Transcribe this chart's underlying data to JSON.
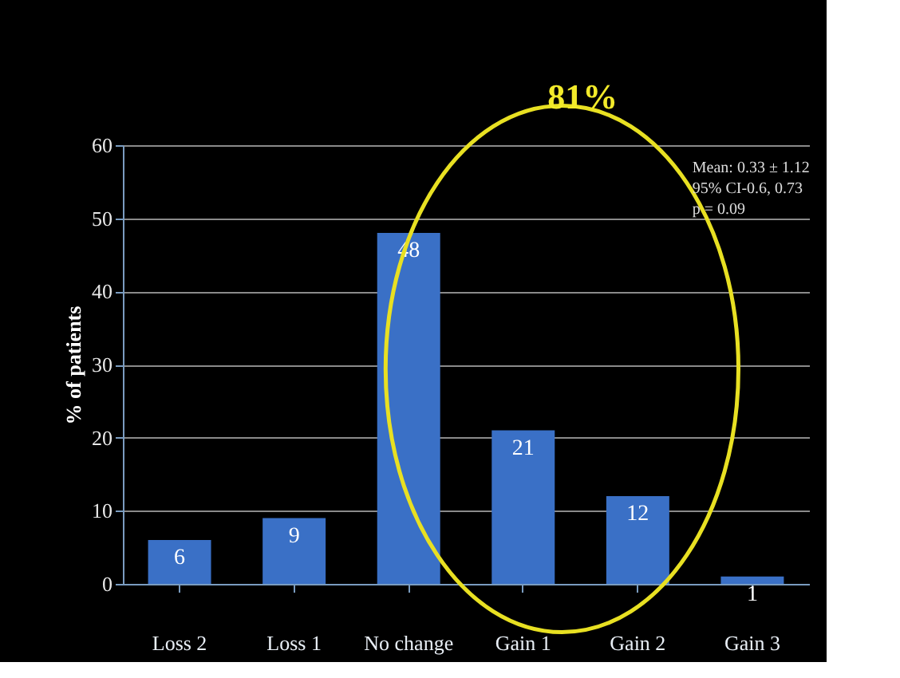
{
  "chart_data": {
    "type": "bar",
    "ylabel": "% of patients",
    "categories": [
      "Loss 2",
      "Loss 1",
      "No change",
      "Gain 1",
      "Gain 2",
      "Gain 3"
    ],
    "values": [
      6,
      9,
      48,
      21,
      12,
      1
    ],
    "color": "#3a70c6",
    "ylim": [
      0,
      60
    ],
    "yticks": [
      0,
      10,
      20,
      30,
      40,
      50,
      60
    ],
    "grid": "y",
    "data_labels": true,
    "annotations": [
      "81%",
      "Mean: 0.33 ± 1.12",
      "95% CI-0.6, 0.73",
      "p = 0.09"
    ]
  }
}
